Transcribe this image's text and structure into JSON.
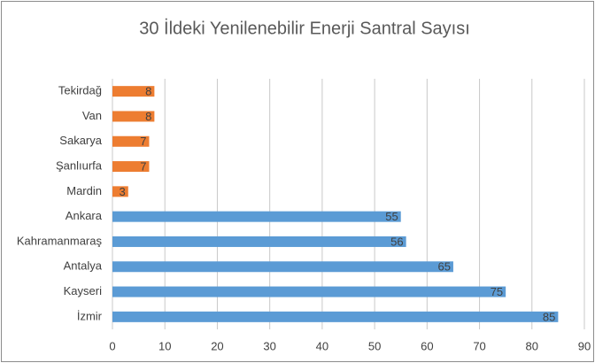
{
  "chart_data": {
    "type": "bar",
    "orientation": "horizontal",
    "title": "30 İldeki Yenilenebilir Enerji Santral Sayısı",
    "categories": [
      "Tekirdağ",
      "Van",
      "Sakarya",
      "Şanlıurfa",
      "Mardin",
      "Ankara",
      "Kahramanmaraş",
      "Antalya",
      "Kayseri",
      "İzmir"
    ],
    "values": [
      8,
      8,
      7,
      7,
      3,
      55,
      56,
      65,
      75,
      85
    ],
    "colors": [
      "#ed7d31",
      "#ed7d31",
      "#ed7d31",
      "#ed7d31",
      "#ed7d31",
      "#5b9bd5",
      "#5b9bd5",
      "#5b9bd5",
      "#5b9bd5",
      "#5b9bd5"
    ],
    "xlim": [
      0,
      90
    ],
    "xticks": [
      0,
      10,
      20,
      30,
      40,
      50,
      60,
      70,
      80,
      90
    ],
    "grid": true
  }
}
